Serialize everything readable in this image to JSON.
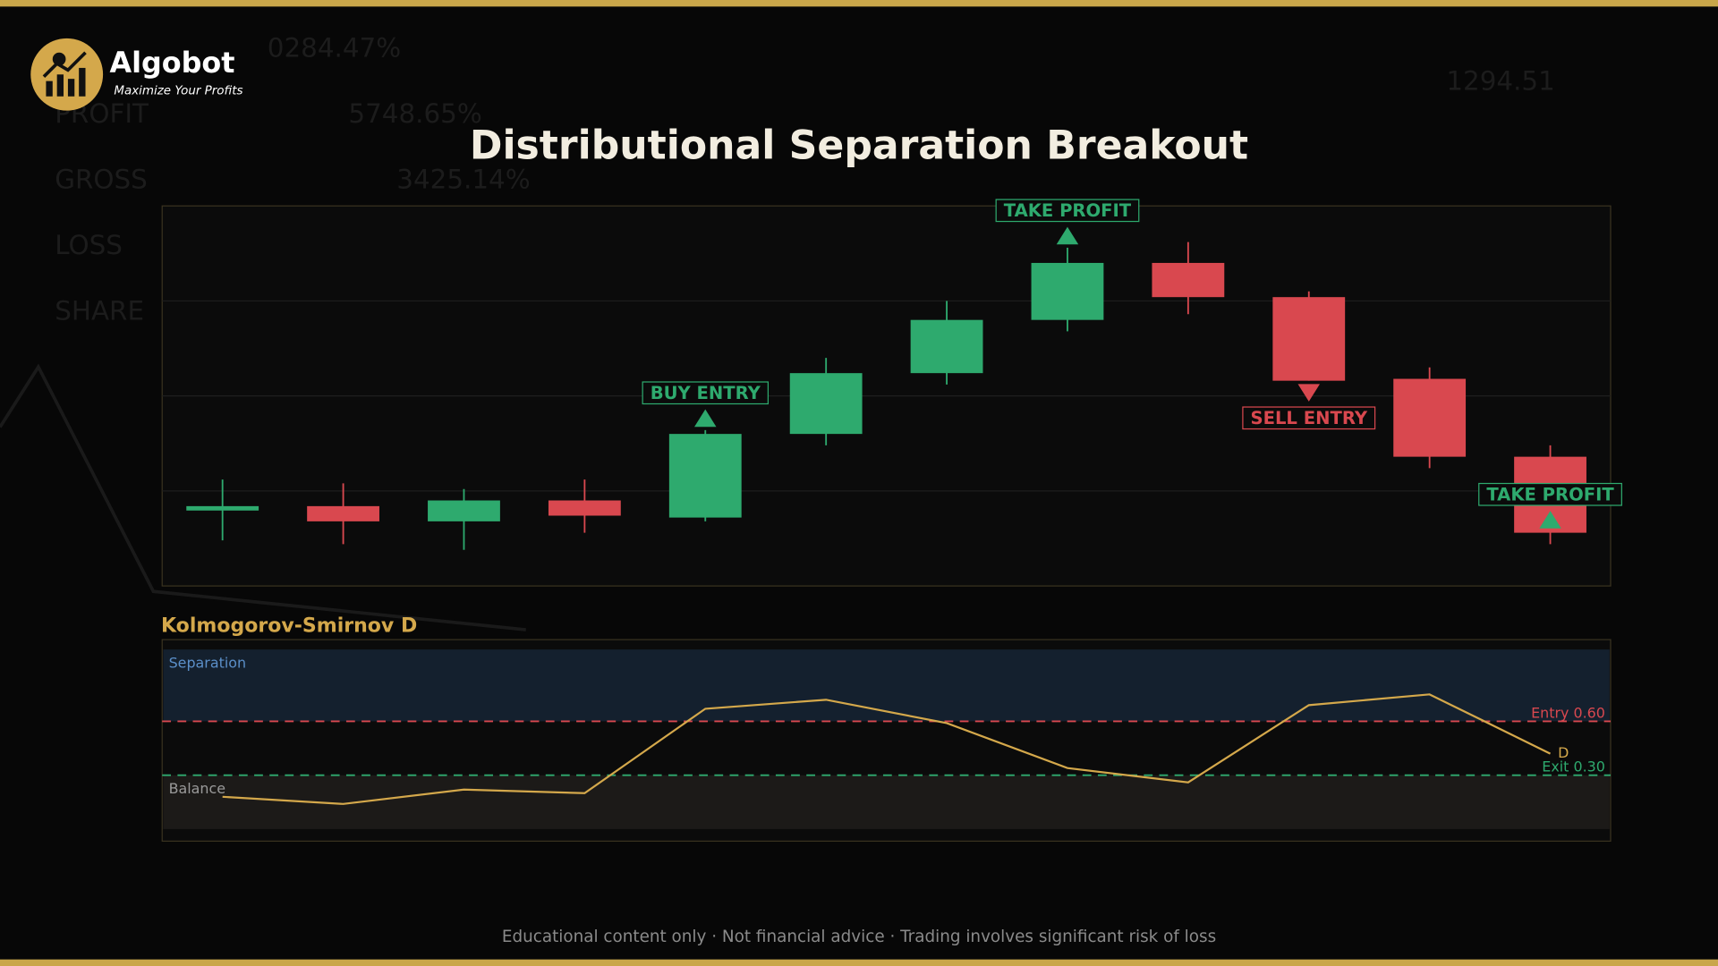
{
  "header": {
    "brand": "Algobot",
    "tagline": "Maximize Your Profits"
  },
  "backdrop": [
    "0284.47%",
    "PROFIT",
    "5748.65%",
    "GROSS",
    "3425.14%",
    "LOSS",
    "SHARE",
    "1294.51"
  ],
  "footer": "Educational content only  ·  Not financial advice  ·  Trading involves significant risk of loss",
  "chart_data": [
    {
      "type": "candlestick",
      "title": "Distributional Separation Breakout",
      "open": [
        20,
        21,
        17,
        22.5,
        18,
        40,
        56,
        70,
        85,
        76,
        54.5,
        34
      ],
      "high": [
        28,
        27,
        25.5,
        28,
        41,
        60,
        75,
        89,
        90.5,
        77.5,
        57.5,
        37
      ],
      "low": [
        12,
        11,
        9.5,
        14,
        17,
        37,
        53,
        67,
        71.5,
        54,
        31,
        11
      ],
      "close": [
        21,
        17,
        22.5,
        18.5,
        40,
        56,
        70,
        85,
        76,
        54,
        34,
        14
      ],
      "up_color": "#2eaa6e",
      "down_color": "#d9484f",
      "signals": [
        null,
        null,
        null,
        null,
        "BUY ENTRY",
        null,
        null,
        "TAKE PROFIT",
        null,
        "SELL ENTRY",
        null,
        "TAKE PROFIT"
      ],
      "signal_directions": [
        null,
        null,
        null,
        null,
        "up",
        null,
        null,
        "up",
        null,
        "down",
        null,
        "up"
      ],
      "signal_colors": [
        null,
        null,
        null,
        null,
        "#2eaa6e",
        null,
        null,
        "#2eaa6e",
        null,
        "#d9484f",
        null,
        "#2eaa6e"
      ],
      "ylim": [
        0,
        100
      ],
      "yticks": [
        25,
        50,
        75
      ],
      "grid": true
    },
    {
      "type": "line",
      "title": "Kolmogorov-Smirnov D",
      "series": [
        {
          "name": "D",
          "color": "#d4a84b",
          "values": [
            0.18,
            0.14,
            0.22,
            0.2,
            0.67,
            0.72,
            0.59,
            0.34,
            0.26,
            0.69,
            0.75,
            0.42
          ]
        }
      ],
      "zones": [
        {
          "label": "Separation",
          "from": 0.6,
          "to": 1,
          "color": "#14202e"
        },
        {
          "label": "Balance",
          "from": 0,
          "to": 0.3,
          "color": "#1c1a18"
        }
      ],
      "hlines": [
        {
          "value": 0.6,
          "label": "Entry 0.60",
          "color": "#d9484f"
        },
        {
          "value": 0.3,
          "label": "Exit 0.30",
          "color": "#2eaa6e"
        }
      ],
      "ylim": [
        0,
        1
      ]
    }
  ]
}
